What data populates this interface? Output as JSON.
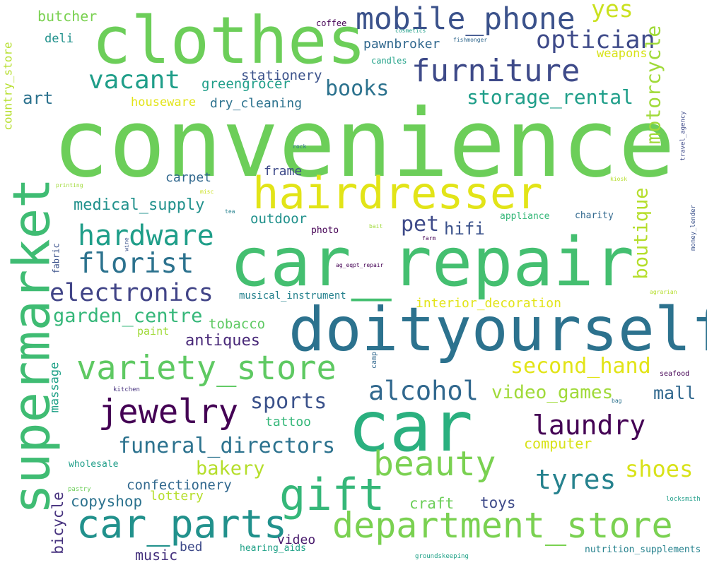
{
  "word_cloud": {
    "words": [
      {
        "text": "convenience",
        "color": "#6cce59"
      },
      {
        "text": "car_repair",
        "color": "#44bf70"
      },
      {
        "text": "clothes",
        "color": "#6cce59"
      },
      {
        "text": "doityourself",
        "color": "#2c728e"
      },
      {
        "text": "car",
        "color": "#2ab07f"
      },
      {
        "text": "supermarket",
        "color": "#3fbc73"
      },
      {
        "text": "hairdresser",
        "color": "#e2e418"
      },
      {
        "text": "department_store",
        "color": "#7ad151"
      },
      {
        "text": "variety_store",
        "color": "#5ec962"
      },
      {
        "text": "car_parts",
        "color": "#21918c"
      },
      {
        "text": "gift",
        "color": "#35b779"
      },
      {
        "text": "mobile_phone",
        "color": "#3b528b"
      },
      {
        "text": "furniture",
        "color": "#3e4a89"
      },
      {
        "text": "beauty",
        "color": "#7ad151"
      },
      {
        "text": "jewelry",
        "color": "#440154"
      },
      {
        "text": "hardware",
        "color": "#1f9e89"
      },
      {
        "text": "florist",
        "color": "#2c728e"
      },
      {
        "text": "vacant",
        "color": "#1f9e89"
      },
      {
        "text": "electronics",
        "color": "#414487"
      },
      {
        "text": "alcohol",
        "color": "#31688e"
      },
      {
        "text": "laundry",
        "color": "#440154"
      },
      {
        "text": "optician",
        "color": "#3e4a89"
      },
      {
        "text": "motorcycle",
        "color": "#a0da39"
      },
      {
        "text": "funeral_directors",
        "color": "#2c728e"
      },
      {
        "text": "tyres",
        "color": "#26828e"
      },
      {
        "text": "second_hand",
        "color": "#e2e418"
      },
      {
        "text": "shoes",
        "color": "#d8e219"
      },
      {
        "text": "yes",
        "color": "#cae11f"
      },
      {
        "text": "storage_rental",
        "color": "#1f9e89"
      },
      {
        "text": "books",
        "color": "#2c728e"
      },
      {
        "text": "boutique",
        "color": "#b5de2b"
      },
      {
        "text": "video_games",
        "color": "#a0da39"
      },
      {
        "text": "sports",
        "color": "#3b528b"
      },
      {
        "text": "garden_centre",
        "color": "#35b779"
      },
      {
        "text": "pet",
        "color": "#3e4a89"
      },
      {
        "text": "bakery",
        "color": "#b5de2b"
      },
      {
        "text": "hifi",
        "color": "#3b528b"
      },
      {
        "text": "mall",
        "color": "#31688e"
      },
      {
        "text": "medical_supply",
        "color": "#21918c"
      },
      {
        "text": "country_store",
        "color": "#b5de2b"
      },
      {
        "text": "massage",
        "color": "#1fa187"
      },
      {
        "text": "bicycle",
        "color": "#46327e"
      },
      {
        "text": "copyshop",
        "color": "#2c728e"
      },
      {
        "text": "antiques",
        "color": "#482878"
      },
      {
        "text": "confectionery",
        "color": "#31688e"
      },
      {
        "text": "art",
        "color": "#2c728e"
      },
      {
        "text": "toys",
        "color": "#3e4a89"
      },
      {
        "text": "craft",
        "color": "#6cce59"
      },
      {
        "text": "computer",
        "color": "#d8e219"
      },
      {
        "text": "stationery",
        "color": "#3b528b"
      },
      {
        "text": "greengrocer",
        "color": "#1f9e89"
      },
      {
        "text": "outdoor",
        "color": "#21918c"
      },
      {
        "text": "tobacco",
        "color": "#5ec962"
      },
      {
        "text": "butcher",
        "color": "#7ad151"
      },
      {
        "text": "interior_decoration",
        "color": "#e2e418"
      },
      {
        "text": "pawnbroker",
        "color": "#31688e"
      },
      {
        "text": "dry_cleaning",
        "color": "#2c728e"
      },
      {
        "text": "tattoo",
        "color": "#35b779"
      },
      {
        "text": "houseware",
        "color": "#e2e418"
      },
      {
        "text": "carpet",
        "color": "#31688e"
      },
      {
        "text": "frame",
        "color": "#3e4a89"
      },
      {
        "text": "music",
        "color": "#46327e"
      },
      {
        "text": "bed",
        "color": "#3e4a89"
      },
      {
        "text": "video",
        "color": "#481a6c"
      },
      {
        "text": "lottery",
        "color": "#b5de2b"
      },
      {
        "text": "deli",
        "color": "#21918c"
      },
      {
        "text": "weapons",
        "color": "#d8e219"
      },
      {
        "text": "nutrition_supplements",
        "color": "#26828e"
      },
      {
        "text": "hearing_aids",
        "color": "#1fa187"
      },
      {
        "text": "musical_instrument",
        "color": "#26828e"
      },
      {
        "text": "paint",
        "color": "#a0da39"
      },
      {
        "text": "wholesale",
        "color": "#1f9e89"
      },
      {
        "text": "photo",
        "color": "#440154"
      },
      {
        "text": "appliance",
        "color": "#35b779"
      },
      {
        "text": "charity",
        "color": "#31688e"
      },
      {
        "text": "coffee",
        "color": "#440154"
      },
      {
        "text": "candles",
        "color": "#1fa187"
      },
      {
        "text": "fabric",
        "color": "#3b528b"
      },
      {
        "text": "travel_agency",
        "color": "#3e4a89"
      },
      {
        "text": "money_lender",
        "color": "#3b528b"
      },
      {
        "text": "camp",
        "color": "#31688e"
      },
      {
        "text": "seafood",
        "color": "#440154"
      },
      {
        "text": "kitchen",
        "color": "#46327e"
      },
      {
        "text": "pastry",
        "color": "#6cce59"
      },
      {
        "text": "locksmith",
        "color": "#1f9e89"
      },
      {
        "text": "groundskeeping",
        "color": "#1fa187"
      },
      {
        "text": "cosmetics",
        "color": "#1f9e89"
      },
      {
        "text": "fishmonger",
        "color": "#31688e"
      },
      {
        "text": "rock",
        "color": "#2c728e"
      },
      {
        "text": "printing",
        "color": "#a0da39"
      },
      {
        "text": "misc",
        "color": "#cae11f"
      },
      {
        "text": "tea",
        "color": "#26828e"
      },
      {
        "text": "wine",
        "color": "#3b528b"
      },
      {
        "text": "bait",
        "color": "#a0da39"
      },
      {
        "text": "farm",
        "color": "#440154"
      },
      {
        "text": "ag_eqpt_repair",
        "color": "#440154"
      },
      {
        "text": "kiosk",
        "color": "#b5de2b"
      },
      {
        "text": "agrarian",
        "color": "#b5de2b"
      },
      {
        "text": "bag",
        "color": "#2c728e"
      }
    ]
  }
}
